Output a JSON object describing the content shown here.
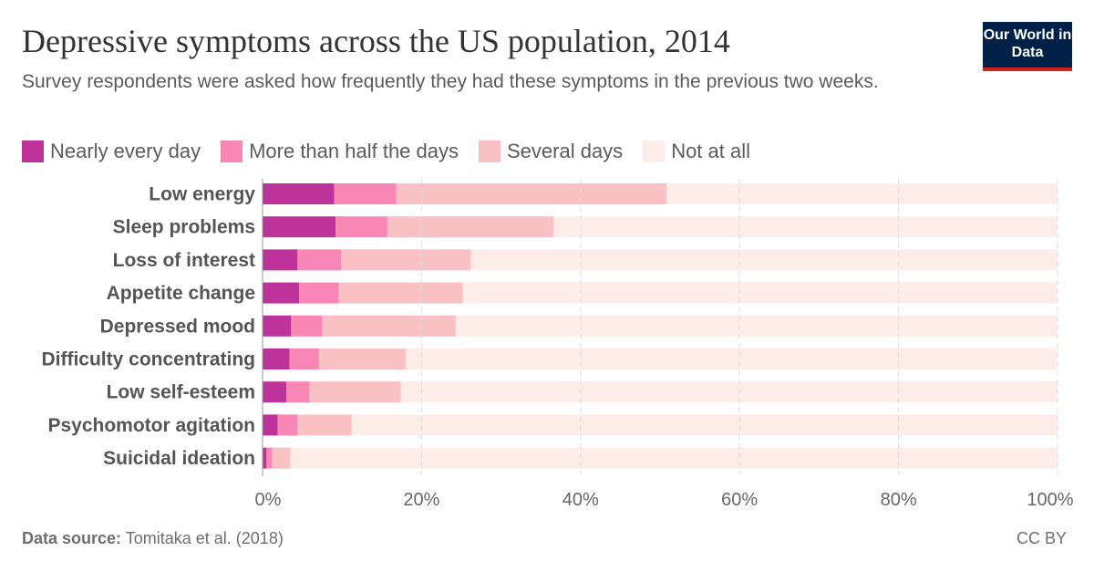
{
  "title": "Depressive symptoms across the US population, 2014",
  "subtitle": "Survey respondents were asked how frequently they had these symptoms in the previous two weeks.",
  "logo": "Our World in Data",
  "footer": {
    "source_label": "Data source:",
    "source": "Tomitaka et al. (2018)",
    "license": "CC BY"
  },
  "chart_data": {
    "type": "bar",
    "orientation": "horizontal",
    "stacked": true,
    "categories": [
      "Low energy",
      "Sleep problems",
      "Loss of interest",
      "Appetite change",
      "Depressed mood",
      "Difficulty concentrating",
      "Low self-esteem",
      "Psychomotor agitation",
      "Suicidal ideation"
    ],
    "series": [
      {
        "name": "Nearly every day",
        "color": "#BE3399",
        "values": [
          9.0,
          9.2,
          4.4,
          4.6,
          3.6,
          3.4,
          3.0,
          1.9,
          0.5
        ]
      },
      {
        "name": "More than half the days",
        "color": "#F987B5",
        "values": [
          7.8,
          6.5,
          5.5,
          5.0,
          3.9,
          3.7,
          2.9,
          2.5,
          0.7
        ]
      },
      {
        "name": "Several days",
        "color": "#FAC1C4",
        "values": [
          34.0,
          20.9,
          16.3,
          15.6,
          16.8,
          10.9,
          11.5,
          6.8,
          2.3
        ]
      },
      {
        "name": "Not at all",
        "color": "#FDEDE8",
        "values": [
          49.2,
          63.4,
          73.8,
          74.8,
          75.7,
          82.0,
          82.6,
          88.8,
          96.5
        ]
      }
    ],
    "xlim": [
      0,
      100
    ],
    "xticks": [
      "0%",
      "20%",
      "40%",
      "60%",
      "80%",
      "100%"
    ],
    "grid": "vertical-dashed",
    "legend": "top"
  }
}
